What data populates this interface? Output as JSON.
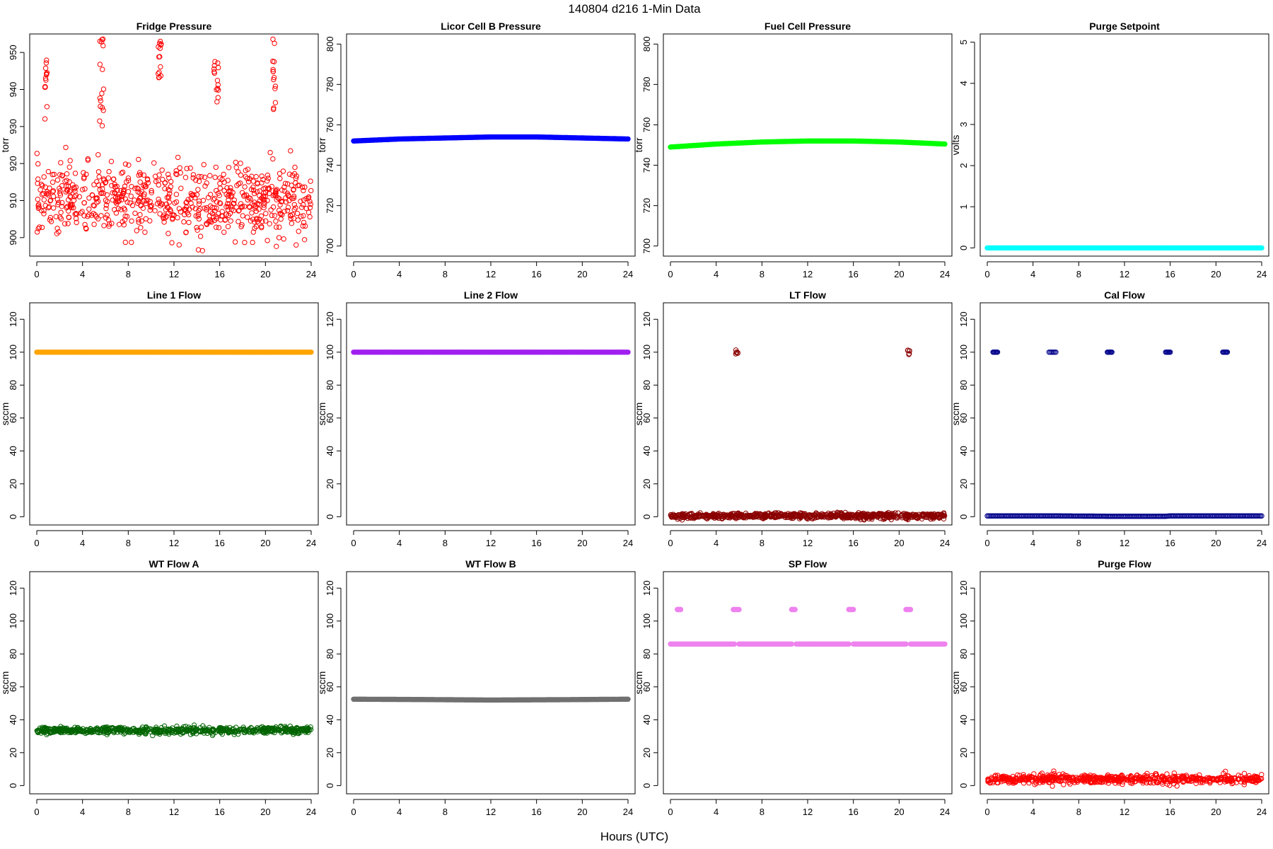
{
  "figure": {
    "title": "140804   d216   1-Min Data",
    "xlabel": "Hours (UTC)"
  },
  "chart_data": [
    {
      "type": "scatter",
      "title": "Fridge Pressure",
      "ylabel": "torr",
      "xlim": [
        0,
        24
      ],
      "ylim": [
        895,
        955
      ],
      "yticks": [
        900,
        910,
        920,
        930,
        940,
        950
      ],
      "xticks": [
        0,
        4,
        8,
        12,
        16,
        20,
        24
      ],
      "grid": false,
      "color": "#ff0000",
      "marker": "open",
      "series": [
        {
          "kind": "band",
          "x": [
            0,
            24
          ],
          "center": [
            910,
            910
          ],
          "spread": 5.5,
          "n": 700
        },
        {
          "kind": "cluster",
          "x": [
            0.7,
            0.9
          ],
          "y": [
            932,
            948
          ],
          "n": 14
        },
        {
          "kind": "cluster",
          "x": [
            5.5,
            5.9
          ],
          "y": [
            930,
            954
          ],
          "n": 16
        },
        {
          "kind": "cluster",
          "x": [
            10.6,
            10.9
          ],
          "y": [
            942,
            953
          ],
          "n": 14
        },
        {
          "kind": "cluster",
          "x": [
            15.5,
            15.9
          ],
          "y": [
            936,
            948
          ],
          "n": 14
        },
        {
          "kind": "cluster",
          "x": [
            20.6,
            20.9
          ],
          "y": [
            934,
            955
          ],
          "n": 14
        }
      ]
    },
    {
      "type": "scatter",
      "title": "Licor Cell B Pressure",
      "ylabel": "torr",
      "xlim": [
        0,
        24
      ],
      "ylim": [
        695,
        805
      ],
      "yticks": [
        700,
        720,
        740,
        760,
        780,
        800
      ],
      "xticks": [
        0,
        4,
        8,
        12,
        16,
        20,
        24
      ],
      "grid": false,
      "color": "#0000ff",
      "marker": "filled",
      "series": [
        {
          "kind": "line",
          "x": [
            0,
            4,
            8,
            12,
            16,
            20,
            24
          ],
          "y": [
            752,
            753,
            753.5,
            754,
            754,
            753.5,
            753
          ]
        }
      ]
    },
    {
      "type": "scatter",
      "title": "Fuel Cell Pressure",
      "ylabel": "torr",
      "xlim": [
        0,
        24
      ],
      "ylim": [
        695,
        805
      ],
      "yticks": [
        700,
        720,
        740,
        760,
        780,
        800
      ],
      "xticks": [
        0,
        4,
        8,
        12,
        16,
        20,
        24
      ],
      "grid": false,
      "color": "#00ff00",
      "marker": "filled",
      "series": [
        {
          "kind": "line",
          "x": [
            0,
            4,
            8,
            12,
            16,
            20,
            24
          ],
          "y": [
            749,
            750.5,
            751.5,
            752,
            752,
            751.5,
            750.5
          ]
        }
      ]
    },
    {
      "type": "scatter",
      "title": "Purge Setpoint",
      "ylabel": "volts",
      "xlim": [
        0,
        24
      ],
      "ylim": [
        -0.2,
        5.2
      ],
      "yticks": [
        0,
        1,
        2,
        3,
        4,
        5
      ],
      "xticks": [
        0,
        4,
        8,
        12,
        16,
        20,
        24
      ],
      "grid": false,
      "color": "#00ffff",
      "marker": "filled",
      "series": [
        {
          "kind": "line",
          "x": [
            0,
            24
          ],
          "y": [
            0,
            0
          ]
        }
      ]
    },
    {
      "type": "scatter",
      "title": "Line 1 Flow",
      "ylabel": "sccm",
      "xlim": [
        0,
        24
      ],
      "ylim": [
        -5,
        130
      ],
      "yticks": [
        0,
        20,
        40,
        60,
        80,
        100,
        120
      ],
      "xticks": [
        0,
        4,
        8,
        12,
        16,
        20,
        24
      ],
      "grid": false,
      "color": "#ffa500",
      "marker": "filled",
      "series": [
        {
          "kind": "line",
          "x": [
            0,
            24
          ],
          "y": [
            100,
            100
          ]
        }
      ]
    },
    {
      "type": "scatter",
      "title": "Line 2 Flow",
      "ylabel": "sccm",
      "xlim": [
        0,
        24
      ],
      "ylim": [
        -5,
        130
      ],
      "yticks": [
        0,
        20,
        40,
        60,
        80,
        100,
        120
      ],
      "xticks": [
        0,
        4,
        8,
        12,
        16,
        20,
        24
      ],
      "grid": false,
      "color": "#a020f0",
      "marker": "filled",
      "series": [
        {
          "kind": "line",
          "x": [
            0,
            24
          ],
          "y": [
            100,
            100
          ]
        }
      ]
    },
    {
      "type": "scatter",
      "title": "LT Flow",
      "ylabel": "sccm",
      "xlim": [
        0,
        24
      ],
      "ylim": [
        -5,
        130
      ],
      "yticks": [
        0,
        20,
        40,
        60,
        80,
        100,
        120
      ],
      "xticks": [
        0,
        4,
        8,
        12,
        16,
        20,
        24
      ],
      "grid": false,
      "color": "#8b0000",
      "marker": "open",
      "series": [
        {
          "kind": "band",
          "x": [
            0,
            24
          ],
          "center": [
            0.5,
            0.5
          ],
          "spread": 1,
          "n": 700
        },
        {
          "kind": "cluster",
          "x": [
            5.7,
            5.9
          ],
          "y": [
            99,
            101.5
          ],
          "n": 6
        },
        {
          "kind": "cluster",
          "x": [
            20.7,
            20.95
          ],
          "y": [
            98.5,
            101.5
          ],
          "n": 6
        }
      ]
    },
    {
      "type": "scatter",
      "title": "Cal Flow",
      "ylabel": "sccm",
      "xlim": [
        0,
        24
      ],
      "ylim": [
        -5,
        130
      ],
      "yticks": [
        0,
        20,
        40,
        60,
        80,
        100,
        120
      ],
      "xticks": [
        0,
        4,
        8,
        12,
        16,
        20,
        24
      ],
      "grid": false,
      "color": "#00008b",
      "marker": "open",
      "series": [
        {
          "kind": "line",
          "x": [
            0,
            0.6,
            5.5,
            6,
            10.6,
            11,
            15.6,
            16,
            20.6,
            21,
            24
          ],
          "y": [
            0.5,
            0.5,
            0.5,
            0.5,
            0.3,
            0.3,
            0.3,
            0.5,
            0.5,
            0.5,
            0.5
          ]
        },
        {
          "kind": "line",
          "x": [
            0.5,
            0.9
          ],
          "y": [
            100,
            100
          ]
        },
        {
          "kind": "line",
          "x": [
            5.4,
            6.0
          ],
          "y": [
            100,
            100
          ]
        },
        {
          "kind": "line",
          "x": [
            10.5,
            10.9
          ],
          "y": [
            100,
            100
          ]
        },
        {
          "kind": "line",
          "x": [
            15.6,
            16.0
          ],
          "y": [
            100,
            100
          ]
        },
        {
          "kind": "line",
          "x": [
            20.6,
            21.0
          ],
          "y": [
            100,
            100
          ]
        }
      ]
    },
    {
      "type": "scatter",
      "title": "WT Flow A",
      "ylabel": "sccm",
      "xlim": [
        0,
        24
      ],
      "ylim": [
        -5,
        130
      ],
      "yticks": [
        0,
        20,
        40,
        60,
        80,
        100,
        120
      ],
      "xticks": [
        0,
        4,
        8,
        12,
        16,
        20,
        24
      ],
      "grid": false,
      "color": "#006400",
      "marker": "open",
      "series": [
        {
          "kind": "band",
          "x": [
            0,
            24
          ],
          "center": [
            33.5,
            33.5
          ],
          "spread": 1.2,
          "n": 650
        }
      ]
    },
    {
      "type": "scatter",
      "title": "WT Flow B",
      "ylabel": "sccm",
      "xlim": [
        0,
        24
      ],
      "ylim": [
        -5,
        130
      ],
      "yticks": [
        0,
        20,
        40,
        60,
        80,
        100,
        120
      ],
      "xticks": [
        0,
        4,
        8,
        12,
        16,
        20,
        24
      ],
      "grid": false,
      "color": "#707070",
      "marker": "filled",
      "series": [
        {
          "kind": "line",
          "x": [
            0,
            6,
            12,
            18,
            24
          ],
          "y": [
            52.5,
            52.3,
            52,
            52.2,
            52.5
          ]
        }
      ]
    },
    {
      "type": "scatter",
      "title": "SP Flow",
      "ylabel": "sccm",
      "xlim": [
        0,
        24
      ],
      "ylim": [
        -5,
        130
      ],
      "yticks": [
        0,
        20,
        40,
        60,
        80,
        100,
        120
      ],
      "xticks": [
        0,
        4,
        8,
        12,
        16,
        20,
        24
      ],
      "grid": false,
      "color": "#ee82ee",
      "marker": "filled",
      "series": [
        {
          "kind": "line",
          "x": [
            0,
            5.6
          ],
          "y": [
            86,
            86
          ]
        },
        {
          "kind": "line",
          "x": [
            6.0,
            10.6
          ],
          "y": [
            86,
            86
          ]
        },
        {
          "kind": "line",
          "x": [
            11.0,
            15.6
          ],
          "y": [
            86,
            86
          ]
        },
        {
          "kind": "line",
          "x": [
            16.0,
            20.6
          ],
          "y": [
            86,
            86
          ]
        },
        {
          "kind": "line",
          "x": [
            21.0,
            24
          ],
          "y": [
            86,
            86
          ]
        },
        {
          "kind": "line",
          "x": [
            0.6,
            0.9
          ],
          "y": [
            107,
            107
          ]
        },
        {
          "kind": "line",
          "x": [
            5.5,
            6.0
          ],
          "y": [
            107,
            107
          ]
        },
        {
          "kind": "line",
          "x": [
            10.6,
            10.9
          ],
          "y": [
            107,
            107
          ]
        },
        {
          "kind": "line",
          "x": [
            15.6,
            16.0
          ],
          "y": [
            107,
            107
          ]
        },
        {
          "kind": "line",
          "x": [
            20.6,
            21.0
          ],
          "y": [
            107,
            107
          ]
        }
      ]
    },
    {
      "type": "scatter",
      "title": "Purge Flow",
      "ylabel": "sccm",
      "xlim": [
        0,
        24
      ],
      "ylim": [
        -5,
        130
      ],
      "yticks": [
        0,
        20,
        40,
        60,
        80,
        100,
        120
      ],
      "xticks": [
        0,
        4,
        8,
        12,
        16,
        20,
        24
      ],
      "grid": false,
      "color": "#ff0000",
      "marker": "open",
      "series": [
        {
          "kind": "band",
          "x": [
            0,
            24
          ],
          "center": [
            4,
            4
          ],
          "spread": 1.5,
          "n": 650
        },
        {
          "kind": "cluster",
          "x": [
            5.6,
            5.9
          ],
          "y": [
            5,
            9
          ],
          "n": 5
        },
        {
          "kind": "cluster",
          "x": [
            20.6,
            21.0
          ],
          "y": [
            5,
            9
          ],
          "n": 5
        }
      ]
    }
  ]
}
